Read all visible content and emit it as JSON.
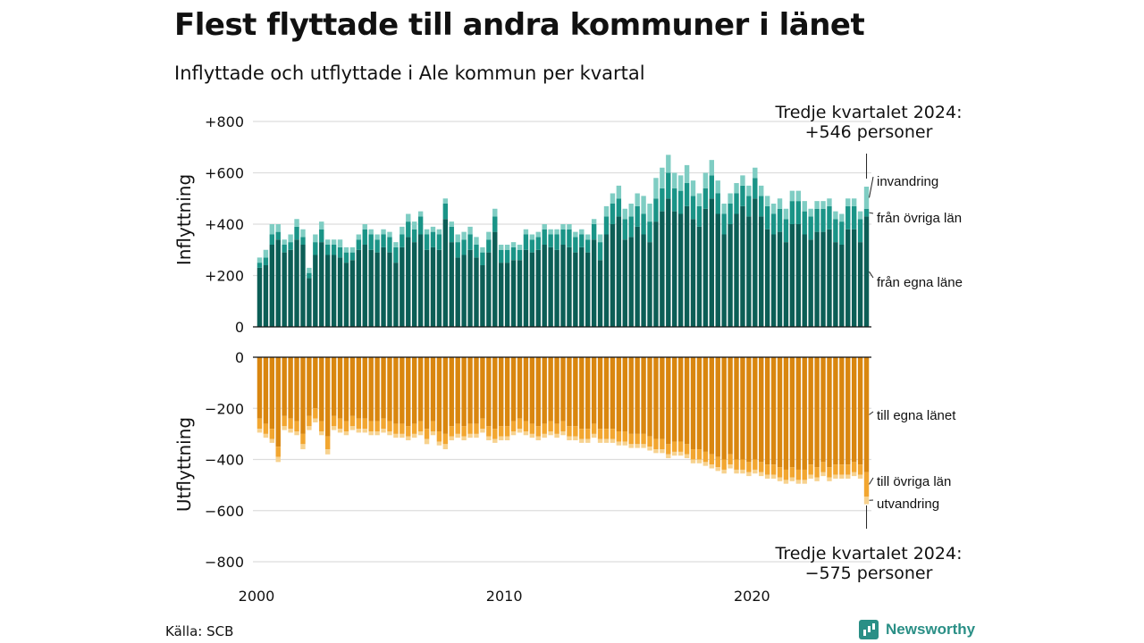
{
  "title": "Flest flyttade till andra kommuner i länet",
  "subtitle": "Inflyttade och utflyttade i Ale kommun per kvartal",
  "source": "Källa: SCB",
  "brand": "Newsworthy",
  "colors": {
    "in_own_county": "#0c5e56",
    "in_other_counties": "#1a9487",
    "in_immigration": "#7fcdc3",
    "out_own_county": "#d9860f",
    "out_other_counties": "#f2a630",
    "out_emigration": "#f7d28f",
    "grid": "#dddddd"
  },
  "callouts": {
    "top_line1": "Tredje kvartalet 2024:",
    "top_line2": "+546 personer",
    "bottom_line1": "Tredje kvartalet 2024:",
    "bottom_line2": "−575 personer"
  },
  "chart_data": [
    {
      "type": "bar",
      "stacked": true,
      "ylabel": "Inflyttning",
      "ylim": [
        0,
        800
      ],
      "yticks": [
        0,
        200,
        400,
        600,
        800
      ],
      "ytick_labels": [
        "0",
        "+200",
        "+400",
        "+600",
        "+800"
      ],
      "xticks": [
        "2000",
        "2010",
        "2020"
      ],
      "x_start": "2000 Q1",
      "x_end": "2024 Q3",
      "series_labels": [
        "från egna läne",
        "från övriga län",
        "invandring"
      ],
      "series": [
        {
          "name": "från egna läne",
          "values": [
            230,
            240,
            320,
            340,
            290,
            300,
            340,
            320,
            190,
            280,
            330,
            280,
            280,
            270,
            250,
            260,
            300,
            320,
            300,
            290,
            310,
            290,
            250,
            310,
            350,
            330,
            360,
            300,
            310,
            300,
            420,
            330,
            270,
            280,
            300,
            270,
            240,
            290,
            370,
            250,
            250,
            260,
            260,
            300,
            290,
            300,
            320,
            310,
            300,
            320,
            310,
            290,
            310,
            290,
            340,
            260,
            360,
            400,
            430,
            340,
            350,
            390,
            360,
            330,
            410,
            450,
            500,
            450,
            440,
            470,
            420,
            390,
            460,
            500,
            440,
            360,
            400,
            440,
            470,
            430,
            500,
            430,
            380,
            360,
            370,
            330,
            400,
            400,
            360,
            340,
            370,
            370,
            380,
            330,
            320,
            380,
            380,
            330,
            430
          ]
        },
        {
          "name": "från övriga län",
          "values": [
            20,
            30,
            40,
            30,
            30,
            30,
            50,
            30,
            20,
            50,
            50,
            40,
            40,
            40,
            40,
            30,
            40,
            60,
            60,
            50,
            50,
            60,
            60,
            50,
            60,
            50,
            70,
            60,
            60,
            60,
            60,
            60,
            60,
            60,
            60,
            50,
            50,
            50,
            60,
            50,
            50,
            50,
            40,
            60,
            50,
            50,
            60,
            50,
            60,
            60,
            70,
            60,
            50,
            50,
            60,
            70,
            70,
            80,
            70,
            80,
            80,
            80,
            80,
            80,
            90,
            90,
            100,
            90,
            90,
            90,
            90,
            80,
            80,
            90,
            80,
            80,
            80,
            80,
            80,
            80,
            80,
            80,
            90,
            80,
            90,
            90,
            90,
            90,
            90,
            90,
            90,
            90,
            90,
            90,
            90,
            90,
            90,
            90,
            30
          ]
        },
        {
          "name": "invandring",
          "values": [
            20,
            30,
            40,
            30,
            20,
            30,
            30,
            30,
            20,
            30,
            30,
            20,
            20,
            30,
            20,
            20,
            20,
            20,
            20,
            20,
            20,
            20,
            20,
            30,
            30,
            30,
            20,
            20,
            20,
            20,
            20,
            20,
            30,
            30,
            30,
            30,
            20,
            30,
            30,
            20,
            20,
            20,
            20,
            20,
            20,
            20,
            20,
            20,
            20,
            20,
            20,
            20,
            20,
            20,
            20,
            30,
            40,
            40,
            50,
            40,
            50,
            50,
            70,
            70,
            80,
            80,
            70,
            60,
            60,
            70,
            60,
            50,
            60,
            60,
            50,
            40,
            40,
            40,
            40,
            40,
            40,
            40,
            40,
            40,
            40,
            40,
            40,
            40,
            40,
            30,
            30,
            30,
            30,
            30,
            30,
            30,
            30,
            30,
            86
          ]
        }
      ]
    },
    {
      "type": "bar",
      "stacked": true,
      "ylabel": "Utflyttning",
      "ylim": [
        -800,
        0
      ],
      "yticks": [
        0,
        -200,
        -400,
        -600,
        -800
      ],
      "ytick_labels": [
        "0",
        "−200",
        "−400",
        "−600",
        "−800"
      ],
      "series_labels": [
        "till egna länet",
        "till övriga län",
        "utvandring"
      ],
      "series": [
        {
          "name": "till egna länet",
          "values": [
            -240,
            -260,
            -280,
            -350,
            -230,
            -240,
            -250,
            -300,
            -230,
            -200,
            -250,
            -310,
            -230,
            -240,
            -250,
            -230,
            -240,
            -240,
            -250,
            -250,
            -240,
            -250,
            -260,
            -260,
            -270,
            -260,
            -250,
            -280,
            -250,
            -290,
            -300,
            -270,
            -260,
            -270,
            -260,
            -260,
            -240,
            -270,
            -280,
            -270,
            -270,
            -250,
            -240,
            -250,
            -260,
            -270,
            -260,
            -250,
            -260,
            -250,
            -270,
            -270,
            -280,
            -280,
            -260,
            -280,
            -280,
            -280,
            -290,
            -290,
            -300,
            -300,
            -300,
            -310,
            -320,
            -320,
            -340,
            -330,
            -330,
            -340,
            -360,
            -360,
            -370,
            -380,
            -390,
            -400,
            -380,
            -400,
            -400,
            -410,
            -400,
            -410,
            -420,
            -420,
            -430,
            -440,
            -430,
            -440,
            -440,
            -420,
            -430,
            -410,
            -430,
            -420,
            -420,
            -420,
            -410,
            -420,
            -450
          ]
        },
        {
          "name": "till övriga län",
          "values": [
            -40,
            -40,
            -40,
            -40,
            -40,
            -40,
            -40,
            -40,
            -40,
            -40,
            -40,
            -50,
            -40,
            -40,
            -40,
            -40,
            -40,
            -40,
            -40,
            -40,
            -40,
            -40,
            -40,
            -40,
            -40,
            -40,
            -40,
            -40,
            -40,
            -40,
            -40,
            -40,
            -40,
            -40,
            -40,
            -40,
            -40,
            -40,
            -40,
            -40,
            -40,
            -40,
            -40,
            -40,
            -40,
            -40,
            -40,
            -40,
            -40,
            -40,
            -40,
            -40,
            -40,
            -40,
            -40,
            -40,
            -40,
            -40,
            -40,
            -40,
            -40,
            -40,
            -40,
            -40,
            -40,
            -40,
            -40,
            -40,
            -40,
            -40,
            -40,
            -40,
            -40,
            -40,
            -40,
            -40,
            -40,
            -40,
            -40,
            -40,
            -40,
            -40,
            -40,
            -40,
            -40,
            -40,
            -40,
            -40,
            -40,
            -40,
            -40,
            -40,
            -40,
            -40,
            -40,
            -40,
            -40,
            -40,
            -95
          ]
        },
        {
          "name": "utvandring",
          "values": [
            -15,
            -15,
            -15,
            -20,
            -15,
            -15,
            -15,
            -20,
            -15,
            -15,
            -15,
            -20,
            -15,
            -15,
            -15,
            -15,
            -15,
            -15,
            -15,
            -15,
            -15,
            -15,
            -15,
            -15,
            -15,
            -15,
            -15,
            -20,
            -15,
            -15,
            -20,
            -15,
            -15,
            -15,
            -15,
            -15,
            -15,
            -15,
            -15,
            -15,
            -15,
            -15,
            -15,
            -15,
            -15,
            -15,
            -15,
            -15,
            -15,
            -15,
            -15,
            -15,
            -15,
            -15,
            -15,
            -15,
            -15,
            -15,
            -15,
            -15,
            -15,
            -15,
            -15,
            -15,
            -15,
            -15,
            -15,
            -15,
            -15,
            -15,
            -15,
            -15,
            -15,
            -15,
            -15,
            -15,
            -15,
            -15,
            -15,
            -15,
            -15,
            -15,
            -15,
            -15,
            -15,
            -15,
            -15,
            -15,
            -15,
            -15,
            -15,
            -15,
            -15,
            -15,
            -15,
            -15,
            -15,
            -15,
            -30
          ]
        }
      ]
    }
  ]
}
